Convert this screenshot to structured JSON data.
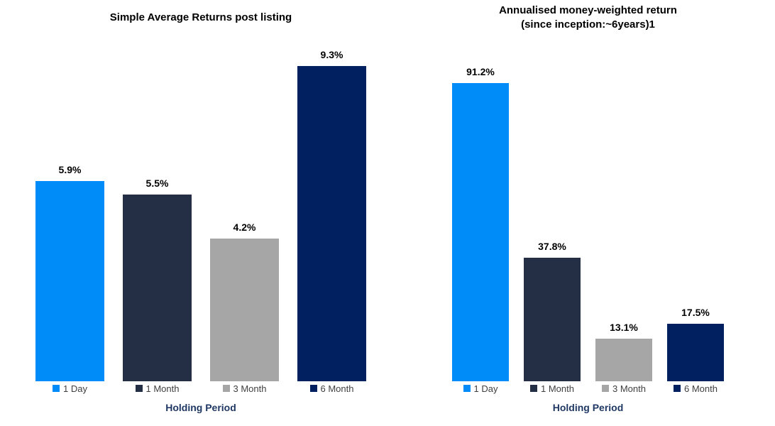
{
  "figure": {
    "background_color": "#ffffff",
    "axis_title_color": "#1F3864",
    "legend_text_color": "#404040",
    "data_label_color": "#000000"
  },
  "chart_data": [
    {
      "type": "bar",
      "title": "Simple Average Returns post listing",
      "subtitle": "",
      "xlabel": "Holding Period",
      "categories": [
        "1 Day",
        "1 Month",
        "3 Month",
        "6 Month"
      ],
      "values": [
        5.9,
        5.5,
        4.2,
        9.3
      ],
      "data_labels": [
        "5.9%",
        "5.5%",
        "4.2%",
        "9.3%"
      ],
      "colors": [
        "#008CF8",
        "#242E44",
        "#A6A6A6",
        "#002060"
      ],
      "ylim": [
        0,
        9.3
      ],
      "grid": false,
      "legend_position": "bottom"
    },
    {
      "type": "bar",
      "title": "Annualised money-weighted return",
      "subtitle": "(since inception:~6years)1",
      "xlabel": "Holding Period",
      "categories": [
        "1 Day",
        "1 Month",
        "3 Month",
        "6 Month"
      ],
      "values": [
        91.2,
        37.8,
        13.1,
        17.5
      ],
      "data_labels": [
        "91.2%",
        "37.8%",
        "13.1%",
        "17.5%"
      ],
      "colors": [
        "#008CF8",
        "#242E44",
        "#A6A6A6",
        "#002060"
      ],
      "ylim": [
        0,
        91.2
      ],
      "grid": false,
      "legend_position": "bottom"
    }
  ]
}
